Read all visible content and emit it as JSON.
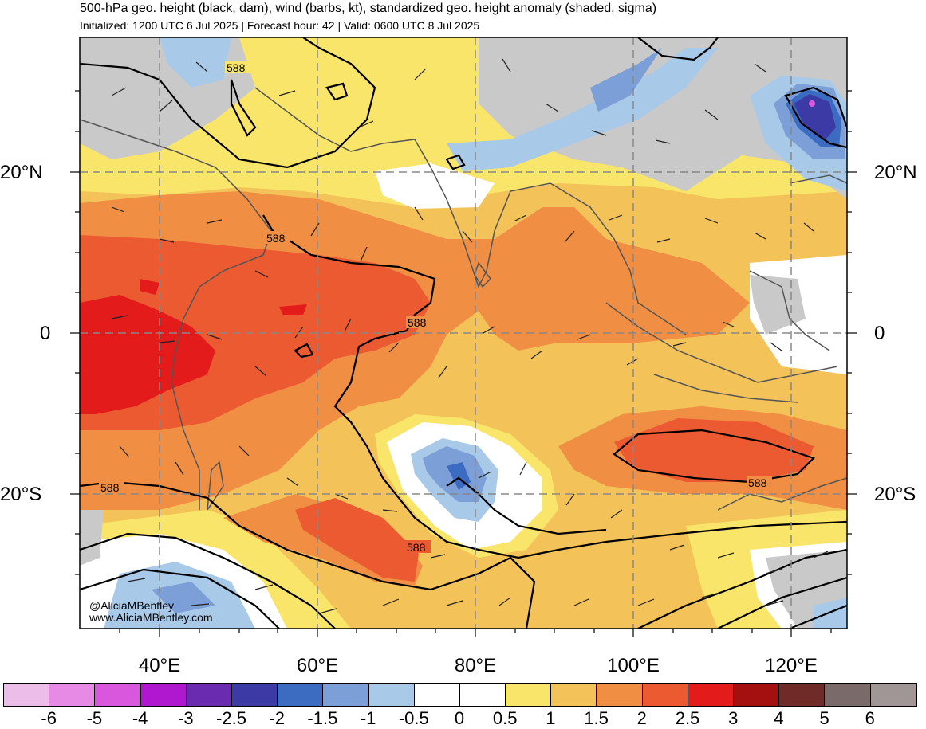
{
  "header": {
    "title": "500-hPa geo. height (black, dam), wind (barbs, kt), standardized geo. height anomaly (shaded, sigma)",
    "subtitle": "Initialized: 1200 UTC 6 Jul 2025 | Forecast hour: 42 | Valid: 0600 UTC 8 Jul 2025"
  },
  "map": {
    "lat_labels": {
      "north20": "20°N",
      "equator": "0",
      "south20": "20°S"
    },
    "lon_labels": [
      "40°E",
      "60°E",
      "80°E",
      "100°E",
      "120°E"
    ],
    "contour_labels": [
      "588",
      "588",
      "588",
      "588",
      "588",
      "588"
    ],
    "credit_line1": "@AliciaMBentley",
    "credit_line2": "www.AliciaMBentley.com"
  },
  "colorbar": {
    "ticks": [
      "-6",
      "-5",
      "-4",
      "-3",
      "-2.5",
      "-2",
      "-1.5",
      "-1",
      "-0.5",
      "0",
      "0.5",
      "1",
      "1.5",
      "2",
      "2.5",
      "3",
      "4",
      "5",
      "6"
    ],
    "colors": [
      "#ecbde9",
      "#e68ae6",
      "#d857dd",
      "#b018d0",
      "#6a2bb0",
      "#3c3aa4",
      "#3c6bc2",
      "#7b9fd6",
      "#a9c9e8",
      "#ffffff",
      "#ffffff",
      "#f9e56a",
      "#f3c35a",
      "#f08f44",
      "#ec5a32",
      "#e31b1b",
      "#a40f0f",
      "#6e2b28",
      "#7a6a6a",
      "#a09696"
    ]
  }
}
